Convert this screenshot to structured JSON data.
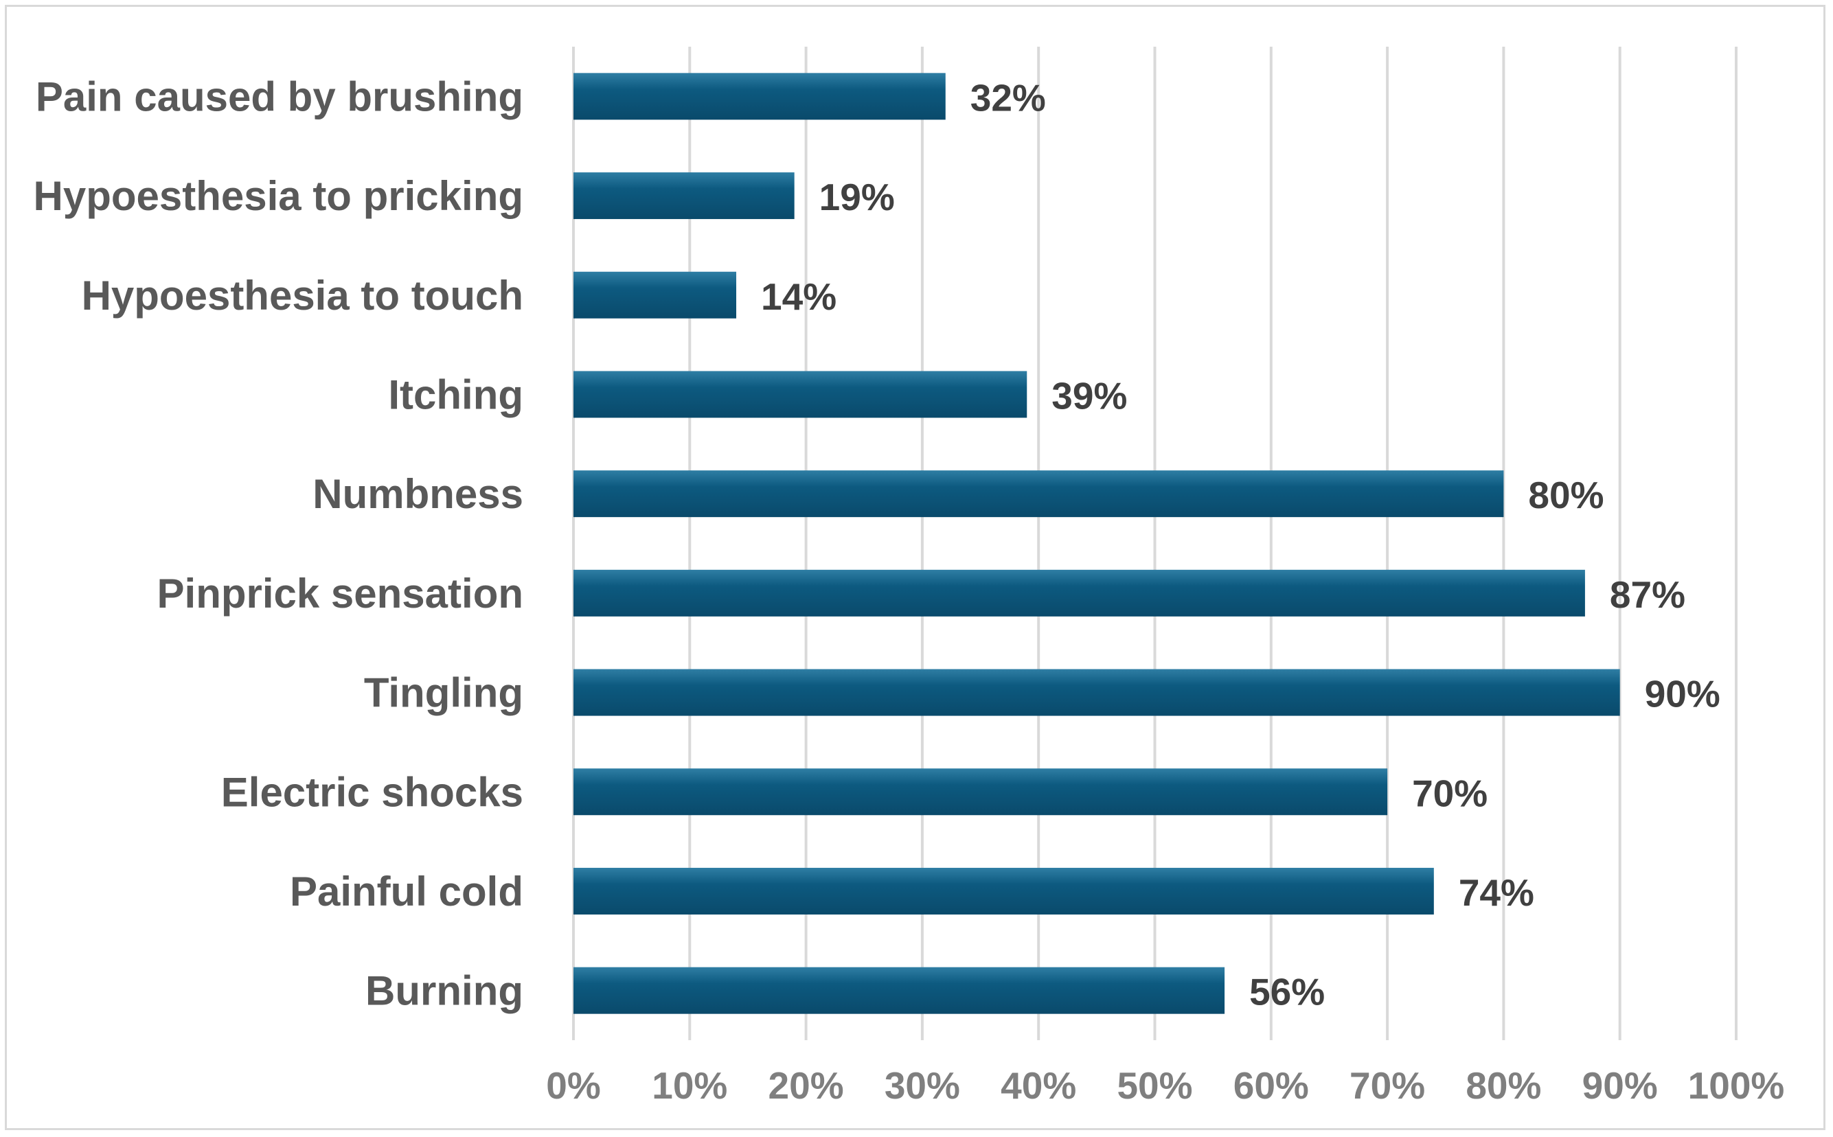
{
  "chart_data": {
    "type": "bar",
    "orientation": "horizontal",
    "title": "",
    "xlabel": "",
    "ylabel": "",
    "categories": [
      "Pain caused by brushing",
      "Hypoesthesia to pricking",
      "Hypoesthesia to touch",
      "Itching",
      "Numbness",
      "Pinprick sensation",
      "Tingling",
      "Electric shocks",
      "Painful cold",
      "Burning"
    ],
    "values": [
      32,
      19,
      14,
      39,
      80,
      87,
      90,
      70,
      74,
      56
    ],
    "data_labels": [
      "32%",
      "19%",
      "14%",
      "39%",
      "80%",
      "87%",
      "90%",
      "70%",
      "74%",
      "56%"
    ],
    "xlim": [
      0,
      100
    ],
    "x_ticks": [
      0,
      10,
      20,
      30,
      40,
      50,
      60,
      70,
      80,
      90,
      100
    ],
    "x_tick_labels": [
      "0%",
      "10%",
      "20%",
      "30%",
      "40%",
      "50%",
      "60%",
      "70%",
      "80%",
      "90%",
      "100%"
    ],
    "grid": "vertical",
    "legend": "none",
    "colors": {
      "bar_top": "#2f7ea4",
      "bar_main": "#0d5a80",
      "bar_bottom": "#0a4a6b",
      "gridline": "#d9d9d9",
      "category_text": "#595959",
      "tick_text": "#7f7f7f",
      "value_text": "#404040",
      "frame": "#d9d9d9"
    }
  }
}
